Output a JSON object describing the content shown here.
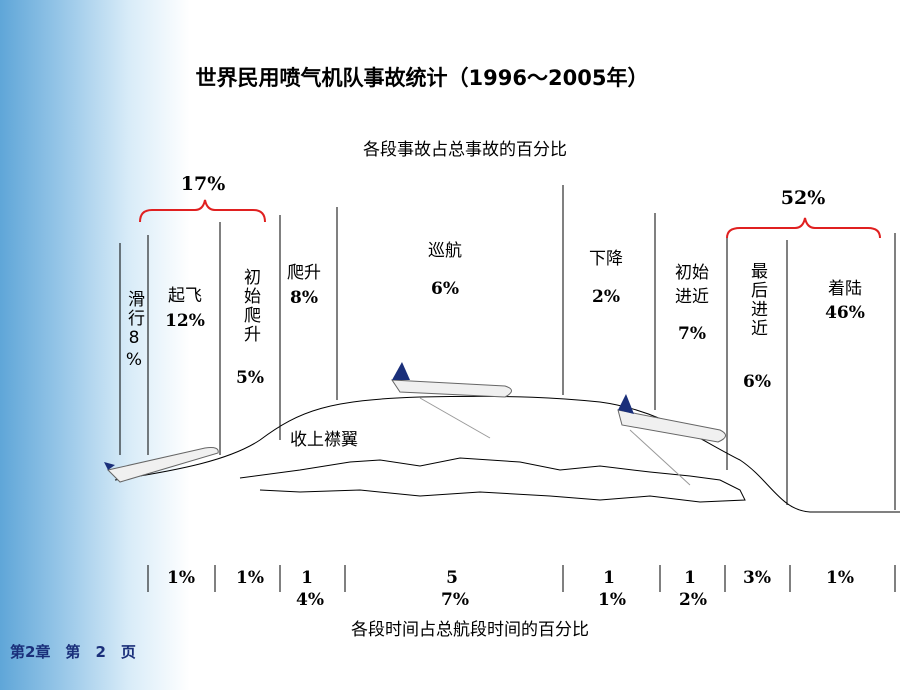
{
  "header": {
    "title": "世界民用喷气机队事故统计（1996～2005年）",
    "accident_caption": "各段事故占总事故的百分比",
    "time_caption": "各段时间占总航段时间的百分比"
  },
  "groups": [
    {
      "label": "17%"
    },
    {
      "label": "52%"
    }
  ],
  "phases": [
    {
      "name": "滑行8%"
    },
    {
      "name": "起飞",
      "accident": "12%"
    },
    {
      "name": "初始爬升",
      "accident": "5%"
    },
    {
      "name": "爬升",
      "accident": "8%"
    },
    {
      "name": "巡航",
      "accident": "6%"
    },
    {
      "name": "下降",
      "accident": "2%"
    },
    {
      "name": "初始进近",
      "accident": "7%"
    },
    {
      "name": "最后进近",
      "accident": "6%"
    },
    {
      "name": "着陆",
      "accident": "46%"
    }
  ],
  "time_shares": [
    "1%",
    "1%",
    "14%",
    "57%",
    "11%",
    "12%",
    "3%",
    "1%"
  ],
  "annotation": "收上襟翼",
  "footer": "第2章　第　2　页"
}
